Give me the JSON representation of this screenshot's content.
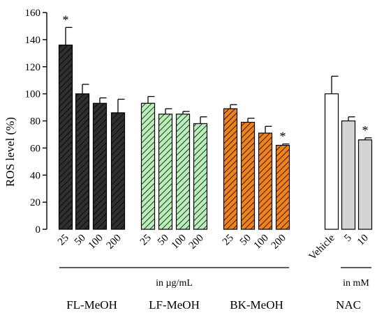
{
  "chart_data": {
    "type": "bar",
    "ylabel": "ROS level (%)",
    "ylim": [
      0,
      160
    ],
    "yticks": [
      0,
      20,
      40,
      60,
      80,
      100,
      120,
      140,
      160
    ],
    "error_bars": true,
    "bars": [
      {
        "group": "FL-MeOH",
        "category": "25",
        "value": 136,
        "error": 13,
        "significant": true,
        "color": "#2f2f2f",
        "pattern": "hatched"
      },
      {
        "group": "FL-MeOH",
        "category": "50",
        "value": 100,
        "error": 7,
        "significant": false,
        "color": "#2f2f2f",
        "pattern": "hatched"
      },
      {
        "group": "FL-MeOH",
        "category": "100",
        "value": 93,
        "error": 4,
        "significant": false,
        "color": "#2f2f2f",
        "pattern": "hatched"
      },
      {
        "group": "FL-MeOH",
        "category": "200",
        "value": 86,
        "error": 10,
        "significant": false,
        "color": "#2f2f2f",
        "pattern": "hatched"
      },
      {
        "group": "LF-MeOH",
        "category": "25",
        "value": 93,
        "error": 5,
        "significant": false,
        "color": "#b9f0b9",
        "pattern": "hatched"
      },
      {
        "group": "LF-MeOH",
        "category": "50",
        "value": 85,
        "error": 4,
        "significant": false,
        "color": "#b9f0b9",
        "pattern": "hatched"
      },
      {
        "group": "LF-MeOH",
        "category": "100",
        "value": 85,
        "error": 2,
        "significant": false,
        "color": "#b9f0b9",
        "pattern": "hatched"
      },
      {
        "group": "LF-MeOH",
        "category": "200",
        "value": 78,
        "error": 5,
        "significant": false,
        "color": "#b9f0b9",
        "pattern": "hatched"
      },
      {
        "group": "BK-MeOH",
        "category": "25",
        "value": 89,
        "error": 3,
        "significant": false,
        "color": "#f0821e",
        "pattern": "hatched"
      },
      {
        "group": "BK-MeOH",
        "category": "50",
        "value": 79,
        "error": 3,
        "significant": false,
        "color": "#f0821e",
        "pattern": "hatched"
      },
      {
        "group": "BK-MeOH",
        "category": "100",
        "value": 71,
        "error": 5,
        "significant": false,
        "color": "#f0821e",
        "pattern": "hatched"
      },
      {
        "group": "BK-MeOH",
        "category": "200",
        "value": 62,
        "error": 1,
        "significant": true,
        "color": "#f0821e",
        "pattern": "hatched"
      },
      {
        "group": "NAC",
        "category": "Vehicle",
        "value": 100,
        "error": 13,
        "significant": false,
        "color": "#ffffff",
        "pattern": "solid"
      },
      {
        "group": "NAC",
        "category": "5",
        "value": 80,
        "error": 3,
        "significant": false,
        "color": "#d3d3d3",
        "pattern": "solid"
      },
      {
        "group": "NAC",
        "category": "10",
        "value": 66,
        "error": 1.5,
        "significant": true,
        "color": "#d3d3d3",
        "pattern": "solid"
      }
    ],
    "groups": [
      {
        "name": "FL-MeOH"
      },
      {
        "name": "LF-MeOH"
      },
      {
        "name": "BK-MeOH"
      },
      {
        "name": "NAC"
      }
    ],
    "unit_labels": [
      {
        "text": "in µg/mL"
      },
      {
        "text": "in mM"
      }
    ],
    "significance_marker": "*"
  }
}
